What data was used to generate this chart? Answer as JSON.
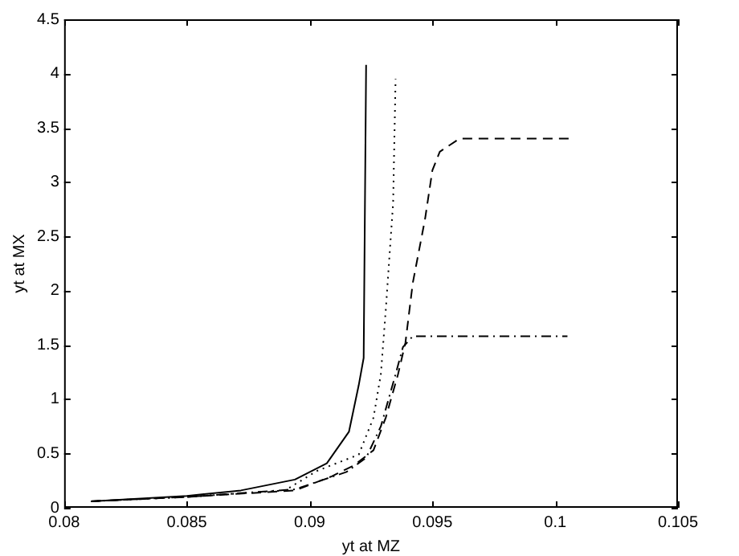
{
  "chart_data": {
    "type": "line",
    "xlabel": "yt at MZ",
    "ylabel": "yt at MX",
    "xlim": [
      0.08,
      0.105
    ],
    "xticks": [
      0.08,
      0.085,
      0.09,
      0.095,
      0.1,
      0.105
    ],
    "ylim": [
      0,
      4.5
    ],
    "yticks": [
      0,
      0.5,
      1,
      1.5,
      2,
      2.5,
      3,
      3.5,
      4,
      4.5
    ],
    "grid": false,
    "legend": false,
    "marker": "none",
    "series": [
      {
        "color": "#000000",
        "line_style": "solid",
        "x": [
          0.0811,
          0.085,
          0.0872,
          0.0894,
          0.0907,
          0.0916,
          0.092,
          0.0922,
          0.0923
        ],
        "values": [
          0.06,
          0.11,
          0.16,
          0.26,
          0.41,
          0.7,
          1.13,
          1.38,
          4.08
        ]
      },
      {
        "color": "#000000",
        "line_style": "dotted",
        "x": [
          0.0811,
          0.085,
          0.089,
          0.0903,
          0.092,
          0.0926,
          0.0929,
          0.0931,
          0.0934,
          0.0935
        ],
        "values": [
          0.06,
          0.1,
          0.16,
          0.34,
          0.49,
          0.83,
          1.23,
          1.82,
          2.81,
          3.95
        ]
      },
      {
        "color": "#000000",
        "line_style": "dashdot",
        "x": [
          0.0811,
          0.085,
          0.0894,
          0.0915,
          0.0923,
          0.0929,
          0.0935,
          0.0938,
          0.0942,
          0.1005
        ],
        "values": [
          0.06,
          0.1,
          0.17,
          0.33,
          0.46,
          0.75,
          1.23,
          1.48,
          1.58,
          1.58
        ]
      },
      {
        "color": "#000000",
        "line_style": "dashed",
        "x": [
          0.0811,
          0.085,
          0.0894,
          0.0909,
          0.0918,
          0.0926,
          0.0931,
          0.0936,
          0.0939,
          0.0942,
          0.0947,
          0.095,
          0.0953,
          0.0961,
          0.1006
        ],
        "values": [
          0.06,
          0.1,
          0.16,
          0.29,
          0.39,
          0.53,
          0.83,
          1.23,
          1.52,
          2.07,
          2.66,
          3.11,
          3.28,
          3.4,
          3.4
        ]
      }
    ]
  }
}
